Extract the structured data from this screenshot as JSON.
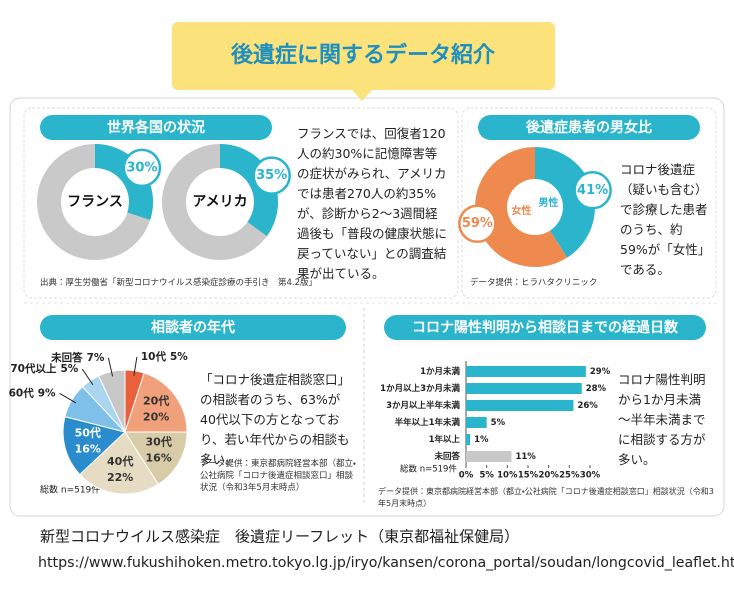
{
  "title": "後遺症に関するデータ紹介",
  "chart_data": [
    {
      "type": "donut",
      "title": "世界各国の状況",
      "categories": [
        "フランス",
        "アメリカ"
      ],
      "values": [
        30,
        35
      ],
      "value_labels": [
        "30%",
        "35%"
      ],
      "color": "#2bb5cc",
      "track_color": "#c9c9c9",
      "note": "フランスでは、回復者120人の約30%に記憶障害等の症状がみられ、アメリカでは患者270人の約35%が、診断から2～3週間経過後も「普段の健康状態に戻っていない」との調査結果が出ている。",
      "source": "出典：厚生労働省「新型コロナウイルス感染症診療の手引き　第4.2版」"
    },
    {
      "type": "ring",
      "title": "後遺症患者の男女比",
      "categories": [
        "男性",
        "女性"
      ],
      "values": [
        41,
        59
      ],
      "value_labels": [
        "41%",
        "59%"
      ],
      "colors": [
        "#2bb5cc",
        "#ef8a4f"
      ],
      "note": "コロナ後遺症（疑いも含む）で診療した患者のうち、約59%が「女性」である。",
      "source": "データ提供：ヒラハタクリニック"
    },
    {
      "type": "pie",
      "title": "相談者の年代",
      "categories": [
        "10代",
        "20代",
        "30代",
        "40代",
        "50代",
        "60代",
        "70代以上",
        "未回答"
      ],
      "values": [
        5,
        20,
        16,
        22,
        16,
        9,
        5,
        7
      ],
      "value_labels": [
        "5%",
        "20%",
        "16%",
        "22%",
        "16%",
        "9%",
        "5%",
        "7%"
      ],
      "colors": [
        "#e8603c",
        "#f0a07a",
        "#d8cba8",
        "#e6dcc4",
        "#2a8ccc",
        "#7ec0e8",
        "#a9d5ef",
        "#c8c8c8"
      ],
      "total": "総数 n=519件",
      "note": "「コロナ後遺症相談窓口」の相談者のうち、63%が40代以下の方となっており、若い年代からの相談も多い。",
      "source": "データ提供：東京都病院経営本部（都立・公社病院「コロナ後遺症相談窓口」相談状況（令和3年5月末時点）"
    },
    {
      "type": "bar",
      "orientation": "horizontal",
      "title": "コロナ陽性判明から相談日までの経過日数",
      "categories": [
        "1か月未満",
        "1か月以上3か月未満",
        "3か月以上半年未満",
        "半年以上1年未満",
        "1年以上",
        "未回答"
      ],
      "values": [
        29,
        28,
        26,
        5,
        1,
        11
      ],
      "value_labels": [
        "29%",
        "28%",
        "26%",
        "5%",
        "1%",
        "11%"
      ],
      "colors": [
        "#2bb5cc",
        "#2bb5cc",
        "#2bb5cc",
        "#2bb5cc",
        "#2bb5cc",
        "#c8c8c8"
      ],
      "xlim": [
        0,
        30
      ],
      "xticks": [
        {
          "value": 0,
          "label": "0%"
        },
        {
          "value": 5,
          "label": "5%"
        },
        {
          "value": 10,
          "label": "10%"
        },
        {
          "value": 15,
          "label": "15%"
        },
        {
          "value": 20,
          "label": "20%"
        },
        {
          "value": 25,
          "label": "25%"
        },
        {
          "value": 30,
          "label": "30%"
        }
      ],
      "total": "総数 n=519件",
      "note": "コロナ陽性判明から1か月未満～半年未満までに相談する方が多い。",
      "source": "データ提供：東京都病院経営本部（都立・公社病院「コロナ後遺症相談窓口」相談状況（令和3年5月末時点）"
    }
  ],
  "footer": {
    "title": "新型コロナウイルス感染症　後遺症リーフレット（東京都福祉保健局）",
    "url": "https://www.fukushihoken.metro.tokyo.lg.jp/iryo/kansen/corona_portal/soudan/longcovid_leaflet.html"
  }
}
